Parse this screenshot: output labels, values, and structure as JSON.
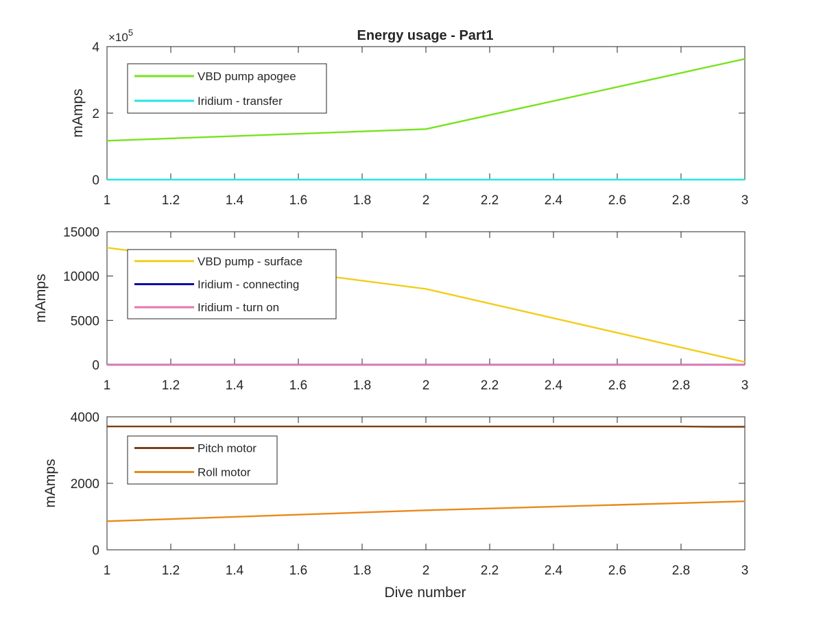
{
  "figure": {
    "title": "Energy usage - Part1",
    "xlabel": "Dive number"
  },
  "chart_data": [
    {
      "type": "line",
      "title": "Energy usage - Part1",
      "xlabel": "",
      "ylabel": "mAmps",
      "exponent_label": "×10",
      "exponent_power": "5",
      "xlim": [
        1,
        3
      ],
      "ylim": [
        0,
        400000
      ],
      "xticks": [
        1,
        1.2,
        1.4,
        1.6,
        1.8,
        2,
        2.2,
        2.4,
        2.6,
        2.8,
        3
      ],
      "xtick_labels": [
        "1",
        "1.2",
        "1.4",
        "1.6",
        "1.8",
        "2",
        "2.2",
        "2.4",
        "2.6",
        "2.8",
        "3"
      ],
      "yticks": [
        0,
        200000,
        400000
      ],
      "ytick_labels": [
        "0",
        "2",
        "4"
      ],
      "legend_position": "top-left",
      "grid": false,
      "series": [
        {
          "name": "VBD pump apogee",
          "color": "#77e31d",
          "x": [
            1,
            2,
            3
          ],
          "y": [
            117000,
            152000,
            363000
          ]
        },
        {
          "name": "Iridium - transfer",
          "color": "#26e5e5",
          "x": [
            1,
            2,
            3
          ],
          "y": [
            0,
            0,
            0
          ]
        }
      ]
    },
    {
      "type": "line",
      "title": "",
      "xlabel": "",
      "ylabel": "mAmps",
      "xlim": [
        1,
        3
      ],
      "ylim": [
        0,
        15000
      ],
      "xticks": [
        1,
        1.2,
        1.4,
        1.6,
        1.8,
        2,
        2.2,
        2.4,
        2.6,
        2.8,
        3
      ],
      "xtick_labels": [
        "1",
        "1.2",
        "1.4",
        "1.6",
        "1.8",
        "2",
        "2.2",
        "2.4",
        "2.6",
        "2.8",
        "3"
      ],
      "yticks": [
        0,
        5000,
        10000,
        15000
      ],
      "ytick_labels": [
        "0",
        "5000",
        "10000",
        "15000"
      ],
      "legend_position": "top-left",
      "grid": false,
      "series": [
        {
          "name": "VBD pump - surface",
          "color": "#f2cd1a",
          "x": [
            1,
            2,
            3
          ],
          "y": [
            13200,
            8550,
            300
          ]
        },
        {
          "name": "Iridium - connecting",
          "color": "#0a0aa8",
          "x": [
            1,
            2,
            3
          ],
          "y": [
            0,
            0,
            0
          ]
        },
        {
          "name": "Iridium - turn on",
          "color": "#e872b0",
          "x": [
            1,
            2,
            3
          ],
          "y": [
            0,
            0,
            0
          ]
        }
      ]
    },
    {
      "type": "line",
      "title": "",
      "xlabel": "Dive number",
      "ylabel": "mAmps",
      "xlim": [
        1,
        3
      ],
      "ylim": [
        0,
        4000
      ],
      "xticks": [
        1,
        1.2,
        1.4,
        1.6,
        1.8,
        2,
        2.2,
        2.4,
        2.6,
        2.8,
        3
      ],
      "xtick_labels": [
        "1",
        "1.2",
        "1.4",
        "1.6",
        "1.8",
        "2",
        "2.2",
        "2.4",
        "2.6",
        "2.8",
        "3"
      ],
      "yticks": [
        0,
        2000,
        4000
      ],
      "ytick_labels": [
        "0",
        "2000",
        "4000"
      ],
      "legend_position": "top-left",
      "grid": false,
      "series": [
        {
          "name": "Pitch motor",
          "color": "#7a3f12",
          "x": [
            1,
            2,
            2.8,
            2.9,
            3
          ],
          "y": [
            3710,
            3710,
            3710,
            3700,
            3700
          ]
        },
        {
          "name": "Roll motor",
          "color": "#e8891a",
          "x": [
            1,
            2,
            3
          ],
          "y": [
            860,
            1190,
            1460
          ]
        }
      ]
    }
  ]
}
